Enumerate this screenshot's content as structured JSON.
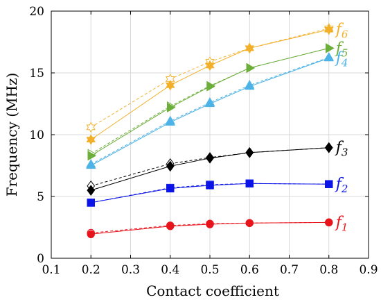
{
  "chart_data": {
    "type": "line",
    "xlabel": "Contact coefficient",
    "ylabel": "Frequency (MHz)",
    "xlim": [
      0.1,
      0.9
    ],
    "ylim": [
      0,
      20
    ],
    "xticks": [
      "0.1",
      "0.2",
      "0.3",
      "0.4",
      "0.5",
      "0.6",
      "0.7",
      "0.8",
      "0.9"
    ],
    "yticks": [
      "0",
      "5",
      "10",
      "15",
      "20"
    ],
    "grid": true,
    "x": [
      0.2,
      0.4,
      0.5,
      0.6,
      0.8
    ],
    "series": [
      {
        "name": "f1",
        "label_main": "f",
        "label_sub": "1",
        "color": "#e8141c",
        "marker": "circle",
        "solid": [
          1.95,
          2.6,
          2.75,
          2.85,
          2.9
        ],
        "dashed": [
          2.05,
          2.65,
          2.8,
          2.85,
          2.9
        ]
      },
      {
        "name": "f2",
        "label_main": "f",
        "label_sub": "2",
        "color": "#0a14e6",
        "marker": "square",
        "solid": [
          4.5,
          5.65,
          5.9,
          6.05,
          6.0
        ],
        "dashed": [
          4.5,
          5.7,
          5.95,
          6.05,
          6.0
        ]
      },
      {
        "name": "f3",
        "label_main": "f",
        "label_sub": "3",
        "color": "#000000",
        "marker": "diamond",
        "solid": [
          5.5,
          7.45,
          8.1,
          8.55,
          8.95
        ],
        "dashed": [
          5.85,
          7.65,
          8.15,
          8.55,
          8.95
        ]
      },
      {
        "name": "f4",
        "label_main": "f",
        "label_sub": "4",
        "color": "#4db3e6",
        "marker": "triangle-up",
        "solid": [
          7.5,
          11.0,
          12.5,
          13.9,
          16.2
        ],
        "dashed": [
          7.6,
          11.1,
          12.6,
          14.0,
          16.25
        ]
      },
      {
        "name": "f5",
        "label_main": "f",
        "label_sub": "5",
        "color": "#6cae3a",
        "marker": "triangle-right",
        "solid": [
          8.3,
          12.2,
          13.9,
          15.4,
          17.0
        ],
        "dashed": [
          8.45,
          12.3,
          13.95,
          15.4,
          17.0
        ]
      },
      {
        "name": "f6",
        "label_main": "f",
        "label_sub": "6",
        "color": "#f2b02a",
        "marker": "hexagram",
        "solid": [
          9.6,
          14.0,
          15.6,
          17.0,
          18.5
        ],
        "dashed": [
          10.6,
          14.5,
          15.9,
          17.0,
          18.6
        ]
      }
    ]
  }
}
